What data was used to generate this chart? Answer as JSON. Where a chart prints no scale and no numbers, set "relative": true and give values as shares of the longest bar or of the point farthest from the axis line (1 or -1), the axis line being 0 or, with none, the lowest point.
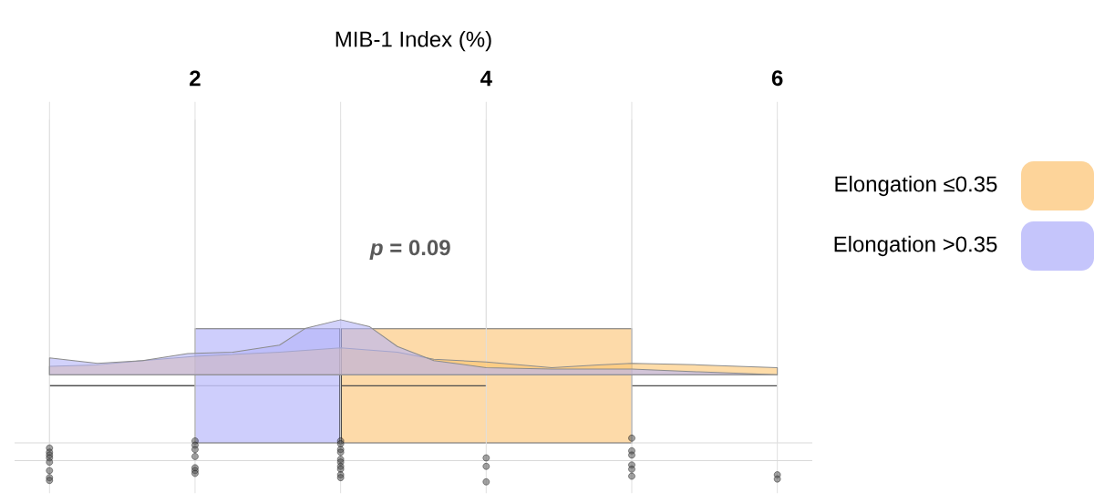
{
  "chart_data": [
    {
      "type": "box",
      "orientation": "horizontal",
      "xlabel": "MIB-1 Index (%)",
      "xlim": [
        0.76,
        6.24
      ],
      "xticks": [
        {
          "value": 1,
          "label": null
        },
        2,
        {
          "value": 3,
          "label": null
        },
        4,
        {
          "value": 5,
          "label": null
        },
        6
      ],
      "grid": "x",
      "legend": "right",
      "annotations": [
        "*p* = 0.09"
      ],
      "categories": [
        null
      ],
      "series": [
        {
          "name": "Elongation ≤0.35",
          "color": "#fdd49a",
          "boxes": [
            {
              "low": 1,
              "q1": 3,
              "median": 3,
              "q3": 5,
              "high": 6
            }
          ]
        },
        {
          "name": "Elongation >0.35",
          "color": "#c5c5fb",
          "boxes": [
            {
              "low": 1,
              "q1": 2,
              "median": 3,
              "q3": 3,
              "high": 4
            }
          ]
        }
      ]
    },
    {
      "type": "area",
      "relative": true,
      "xlim": [
        0.76,
        6.24
      ],
      "xticks": [
        {
          "value": 1,
          "label": null
        },
        2,
        {
          "value": 3,
          "label": null
        },
        4,
        {
          "value": 5,
          "label": null
        },
        6
      ],
      "tick_labels": false,
      "grid": "x",
      "series": [
        {
          "color": "#fdc46e",
          "x": [
            1,
            1.33,
            1.64,
            2,
            2.58,
            3,
            3.39,
            3.64,
            4,
            4.45,
            4.77,
            5,
            5.46,
            6
          ],
          "values": [
            0.67,
            0.68,
            0.71,
            0.74,
            0.77,
            0.8,
            0.77,
            0.72,
            0.7,
            0.66,
            0.68,
            0.69,
            0.68,
            0.66
          ]
        },
        {
          "color": "#b4b4f8",
          "x": [
            1,
            1.33,
            1.64,
            1.95,
            2.26,
            2.58,
            2.76,
            3,
            3.2,
            3.39,
            3.64,
            4,
            4.45,
            5,
            5.46,
            6
          ],
          "values": [
            0.73,
            0.69,
            0.71,
            0.76,
            0.77,
            0.82,
            0.94,
            1.0,
            0.95,
            0.81,
            0.71,
            0.66,
            0.65,
            0.65,
            0.63,
            0.61
          ]
        },
        {
          "type": "scatter",
          "color": "#555555",
          "x": [
            1,
            1,
            1,
            1,
            1,
            1,
            1,
            1,
            2,
            2,
            2,
            2,
            2,
            2,
            2,
            3,
            3,
            3,
            3,
            3,
            3,
            3,
            3,
            3,
            3,
            4,
            4,
            4,
            5,
            5,
            5,
            5,
            5,
            5,
            6,
            6
          ],
          "values": [
            0.09,
            0.06,
            0.04,
            0.02,
            -0.01,
            -0.07,
            -0.12,
            -0.14,
            0.14,
            0.11,
            0.08,
            0.03,
            -0.05,
            -0.07,
            -0.09,
            0.14,
            0.12,
            0.08,
            0.06,
            0.01,
            -0.01,
            -0.04,
            -0.06,
            -0.1,
            -0.12,
            0.02,
            -0.04,
            -0.15,
            0.16,
            0.07,
            0.04,
            -0.03,
            -0.06,
            -0.11,
            -0.1,
            -0.13
          ]
        }
      ]
    }
  ]
}
